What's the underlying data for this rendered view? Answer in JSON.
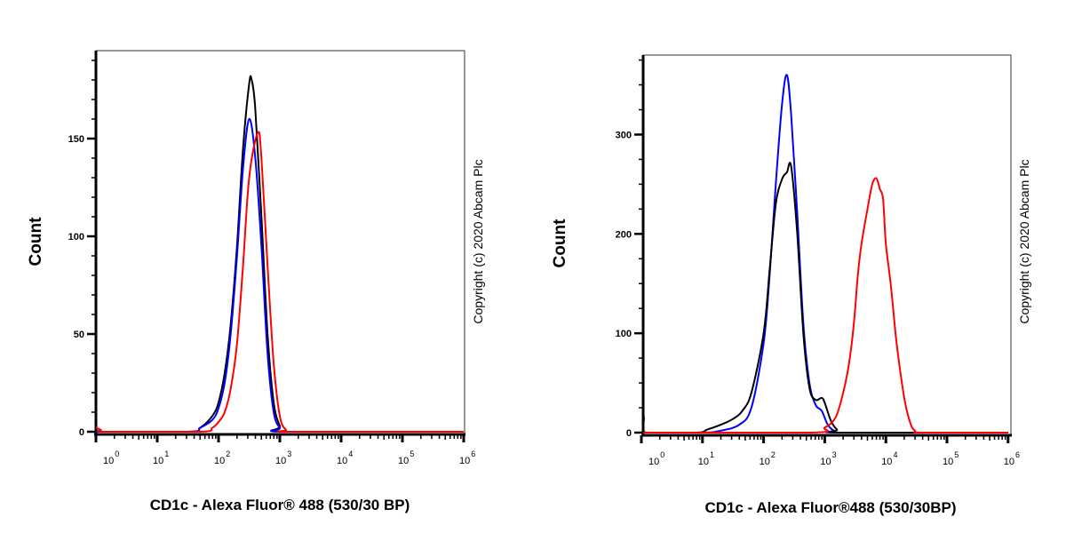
{
  "chart_data": [
    {
      "type": "line",
      "xscale": "log",
      "xlabel": "CD1c - Alexa Fluor® 488 (530/30 BP)",
      "ylabel": "Count",
      "xlim": [
        1,
        1000000
      ],
      "ylim": [
        0,
        195
      ],
      "xticks": [
        {
          "base": "10",
          "exp": "0"
        },
        {
          "base": "10",
          "exp": "1"
        },
        {
          "base": "10",
          "exp": "2"
        },
        {
          "base": "10",
          "exp": "3"
        },
        {
          "base": "10",
          "exp": "4"
        },
        {
          "base": "10",
          "exp": "5"
        },
        {
          "base": "10",
          "exp": "6"
        }
      ],
      "yticks": [
        "0",
        "50",
        "100",
        "150"
      ],
      "ytick_values": [
        0,
        50,
        100,
        150
      ],
      "yminor_step": 10,
      "copyright": "Copyright (c) 2020 Abcam Plc",
      "grid": false,
      "series": [
        {
          "color": "#000000",
          "x": [
            1,
            32,
            50,
            79,
            100,
            126,
            158,
            200,
            251,
            316,
            347,
            398,
            501,
            631,
            794,
            1000,
            1259,
            1000000
          ],
          "y": [
            0,
            0,
            2,
            8,
            15,
            30,
            55,
            95,
            145,
            178,
            180,
            165,
            110,
            50,
            15,
            3,
            0,
            0
          ]
        },
        {
          "color": "#0000ff",
          "x": [
            1,
            32,
            50,
            79,
            100,
            126,
            158,
            200,
            251,
            316,
            398,
            501,
            631,
            794,
            1000,
            1259,
            1000000
          ],
          "y": [
            0,
            0,
            2,
            6,
            12,
            25,
            50,
            90,
            135,
            160,
            140,
            95,
            40,
            10,
            2,
            0,
            0
          ]
        },
        {
          "color": "#ff0000",
          "x": [
            1,
            1.2,
            1.5,
            50,
            79,
            100,
            126,
            158,
            200,
            251,
            316,
            437,
            501,
            631,
            794,
            1000,
            1259,
            1585,
            1000000
          ],
          "y": [
            2,
            1,
            0,
            0,
            2,
            5,
            10,
            22,
            45,
            85,
            130,
            153,
            140,
            85,
            35,
            8,
            1,
            0,
            0
          ]
        }
      ]
    },
    {
      "type": "line",
      "xscale": "log",
      "xlabel": "CD1c - Alexa Fluor®488 (530/30BP)",
      "ylabel": "Count",
      "xlim": [
        1,
        1000000
      ],
      "ylim": [
        0,
        380
      ],
      "xticks": [
        {
          "base": "10",
          "exp": "0"
        },
        {
          "base": "10",
          "exp": "1"
        },
        {
          "base": "10",
          "exp": "2"
        },
        {
          "base": "10",
          "exp": "3"
        },
        {
          "base": "10",
          "exp": "4"
        },
        {
          "base": "10",
          "exp": "5"
        },
        {
          "base": "10",
          "exp": "6"
        }
      ],
      "yticks": [
        "0",
        "100",
        "200",
        "300"
      ],
      "ytick_values": [
        0,
        100,
        200,
        300
      ],
      "yminor_step": 25,
      "copyright": "Copyright (c) 2020 Abcam Plc",
      "grid": false,
      "series": [
        {
          "color": "#0000ff",
          "x": [
            1,
            10,
            20,
            40,
            63,
            100,
            126,
            158,
            200,
            240,
            282,
            355,
            447,
            562,
            708,
            891,
            1122,
            1413,
            1778,
            1000000
          ],
          "y": [
            0,
            0,
            2,
            8,
            25,
            90,
            160,
            250,
            330,
            360,
            320,
            220,
            110,
            50,
            28,
            22,
            8,
            2,
            0,
            0
          ]
        },
        {
          "color": "#000000",
          "x": [
            1,
            1.1,
            1.2,
            8,
            12,
            20,
            32,
            45,
            63,
            100,
            126,
            158,
            200,
            240,
            282,
            355,
            447,
            562,
            708,
            891,
            1000,
            1259,
            1585,
            2000,
            1000000
          ],
          "y": [
            48,
            15,
            0,
            0,
            3,
            8,
            14,
            22,
            40,
            100,
            165,
            230,
            255,
            262,
            268,
            200,
            100,
            45,
            33,
            35,
            30,
            12,
            3,
            0,
            0
          ]
        },
        {
          "color": "#ff0000",
          "x": [
            1,
            600,
            1000,
            1500,
            2000,
            2500,
            3000,
            3500,
            4000,
            5000,
            6000,
            7000,
            8000,
            9000,
            10000,
            12000,
            15000,
            20000,
            25000,
            30000,
            40000,
            1000000
          ],
          "y": [
            0,
            0,
            5,
            15,
            40,
            70,
            110,
            160,
            190,
            225,
            250,
            256,
            245,
            235,
            190,
            150,
            90,
            35,
            10,
            2,
            0,
            0
          ]
        }
      ]
    }
  ]
}
